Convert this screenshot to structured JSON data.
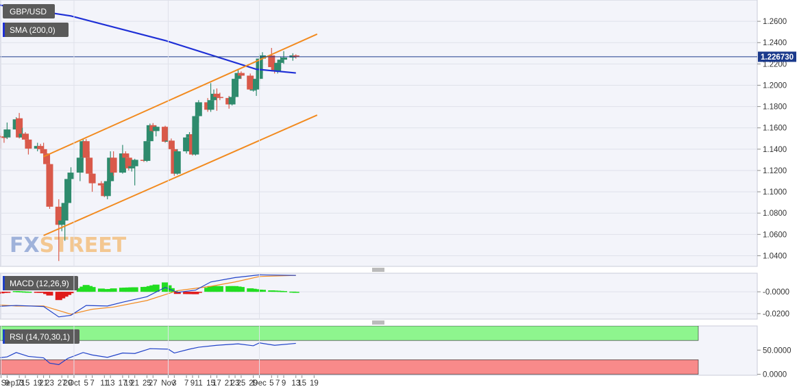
{
  "panels": {
    "price": {
      "pair_label": "GBP/USD",
      "sma_label": "SMA (200,0)",
      "last_price": "1.226730"
    },
    "macd": {
      "label": "MACD (12,26,9)"
    },
    "rsi": {
      "label": "RSI (14,70,30,1)"
    }
  },
  "watermark": {
    "text": "FXSTREET"
  },
  "colors": {
    "bull": "#2e8b6d",
    "bear": "#d9594a",
    "sma": "#1e2fd6",
    "channel": "#f28a1e",
    "price_line": "#1b3a8c",
    "macd_line": "#1e40c8",
    "signal_line": "#f28a1e",
    "hist_pos": "#22dd22",
    "hist_neg": "#e01b1b",
    "rsi_line": "#1e40c8",
    "overbought": "#8ef58e",
    "oversold": "#f88a8a"
  },
  "chart_data": [
    {
      "type": "candlestick",
      "title": "GBP/USD",
      "x_ticks": [
        "Sep 7",
        "9",
        "13",
        "15",
        "19",
        "21",
        "23",
        "27",
        "29",
        "Oct",
        "5",
        "7",
        "11",
        "13",
        "17",
        "19",
        "21",
        "25",
        "27",
        "Nov",
        "3",
        "7",
        "9",
        "11",
        "15",
        "17",
        "21",
        "23",
        "25",
        "29",
        "Dec",
        "5",
        "7",
        "9",
        "13",
        "15",
        "19"
      ],
      "ylim": [
        1.03,
        1.28
      ],
      "y_ticks": [
        "1.2600",
        "1.2400",
        "1.2200",
        "1.2000",
        "1.1800",
        "1.1600",
        "1.1400",
        "1.1200",
        "1.1000",
        "1.0800",
        "1.0600",
        "1.0400"
      ],
      "last_value": 1.22673,
      "candles": [
        {
          "date": "Sep 1",
          "o": 1.1605,
          "h": 1.162,
          "l": 1.15,
          "c": 1.154
        },
        {
          "date": "Sep 2",
          "o": 1.154,
          "h": 1.157,
          "l": 1.148,
          "c": 1.151
        },
        {
          "date": "Sep 5",
          "o": 1.151,
          "h": 1.156,
          "l": 1.144,
          "c": 1.1525
        },
        {
          "date": "Sep 6",
          "o": 1.1525,
          "h": 1.161,
          "l": 1.143,
          "c": 1.152
        },
        {
          "date": "Sep 7",
          "o": 1.152,
          "h": 1.155,
          "l": 1.1405,
          "c": 1.1515
        },
        {
          "date": "Sep 8",
          "o": 1.1515,
          "h": 1.154,
          "l": 1.146,
          "c": 1.151
        },
        {
          "date": "Sep 9",
          "o": 1.151,
          "h": 1.165,
          "l": 1.1495,
          "c": 1.1585
        },
        {
          "date": "Sep 12",
          "o": 1.1585,
          "h": 1.17,
          "l": 1.157,
          "c": 1.168
        },
        {
          "date": "Sep 13",
          "o": 1.169,
          "h": 1.174,
          "l": 1.15,
          "c": 1.151
        },
        {
          "date": "Sep 14",
          "o": 1.151,
          "h": 1.16,
          "l": 1.149,
          "c": 1.1545
        },
        {
          "date": "Sep 15",
          "o": 1.1545,
          "h": 1.156,
          "l": 1.147,
          "c": 1.149
        },
        {
          "date": "Sep 16",
          "o": 1.149,
          "h": 1.15,
          "l": 1.135,
          "c": 1.1405
        },
        {
          "date": "Sep 19",
          "o": 1.1405,
          "h": 1.146,
          "l": 1.138,
          "c": 1.143
        },
        {
          "date": "Sep 20",
          "o": 1.143,
          "h": 1.145,
          "l": 1.138,
          "c": 1.14
        },
        {
          "date": "Sep 21",
          "o": 1.14,
          "h": 1.146,
          "l": 1.136,
          "c": 1.136
        },
        {
          "date": "Sep 22",
          "o": 1.136,
          "h": 1.136,
          "l": 1.121,
          "c": 1.126
        },
        {
          "date": "Sep 23",
          "o": 1.126,
          "h": 1.127,
          "l": 1.084,
          "c": 1.086
        },
        {
          "date": "Sep 26",
          "o": 1.086,
          "h": 1.093,
          "l": 1.035,
          "c": 1.069
        },
        {
          "date": "Sep 27",
          "o": 1.069,
          "h": 1.077,
          "l": 1.063,
          "c": 1.073
        },
        {
          "date": "Sep 28",
          "o": 1.073,
          "h": 1.09,
          "l": 1.054,
          "c": 1.0895
        },
        {
          "date": "Sep 29",
          "o": 1.0895,
          "h": 1.118,
          "l": 1.088,
          "c": 1.112
        },
        {
          "date": "Sep 30",
          "o": 1.112,
          "h": 1.123,
          "l": 1.102,
          "c": 1.118
        },
        {
          "date": "Oct 3",
          "o": 1.118,
          "h": 1.14,
          "l": 1.11,
          "c": 1.132
        },
        {
          "date": "Oct 4",
          "o": 1.132,
          "h": 1.1495,
          "l": 1.13,
          "c": 1.1475
        },
        {
          "date": "Oct 5",
          "o": 1.1475,
          "h": 1.1495,
          "l": 1.129,
          "c": 1.132
        },
        {
          "date": "Oct 6",
          "o": 1.132,
          "h": 1.138,
          "l": 1.109,
          "c": 1.117
        },
        {
          "date": "Oct 7",
          "o": 1.117,
          "h": 1.118,
          "l": 1.1,
          "c": 1.108
        },
        {
          "date": "Oct 10",
          "o": 1.108,
          "h": 1.11,
          "l": 1.104,
          "c": 1.106
        },
        {
          "date": "Oct 11",
          "o": 1.106,
          "h": 1.109,
          "l": 1.095,
          "c": 1.096
        },
        {
          "date": "Oct 12",
          "o": 1.096,
          "h": 1.112,
          "l": 1.093,
          "c": 1.11
        },
        {
          "date": "Oct 13",
          "o": 1.11,
          "h": 1.138,
          "l": 1.105,
          "c": 1.132
        },
        {
          "date": "Oct 14",
          "o": 1.132,
          "h": 1.138,
          "l": 1.115,
          "c": 1.118
        },
        {
          "date": "Oct 17",
          "o": 1.118,
          "h": 1.144,
          "l": 1.117,
          "c": 1.136
        },
        {
          "date": "Oct 18",
          "o": 1.136,
          "h": 1.138,
          "l": 1.125,
          "c": 1.132
        },
        {
          "date": "Oct 19",
          "o": 1.132,
          "h": 1.134,
          "l": 1.12,
          "c": 1.122
        },
        {
          "date": "Oct 20",
          "o": 1.122,
          "h": 1.126,
          "l": 1.119,
          "c": 1.124
        },
        {
          "date": "Oct 21",
          "o": 1.124,
          "h": 1.131,
          "l": 1.106,
          "c": 1.13
        },
        {
          "date": "Oct 24",
          "o": 1.13,
          "h": 1.135,
          "l": 1.128,
          "c": 1.129
        },
        {
          "date": "Oct 25",
          "o": 1.129,
          "h": 1.149,
          "l": 1.128,
          "c": 1.1475
        },
        {
          "date": "Oct 26",
          "o": 1.1475,
          "h": 1.164,
          "l": 1.143,
          "c": 1.1625
        },
        {
          "date": "Oct 27",
          "o": 1.1625,
          "h": 1.1645,
          "l": 1.156,
          "c": 1.157
        },
        {
          "date": "Oct 28",
          "o": 1.157,
          "h": 1.162,
          "l": 1.152,
          "c": 1.161
        },
        {
          "date": "Oct 31",
          "o": 1.161,
          "h": 1.162,
          "l": 1.146,
          "c": 1.147
        },
        {
          "date": "Nov 1",
          "o": 1.147,
          "h": 1.16,
          "l": 1.145,
          "c": 1.148
        },
        {
          "date": "Nov 2",
          "o": 1.148,
          "h": 1.15,
          "l": 1.14,
          "c": 1.14
        },
        {
          "date": "Nov 3",
          "o": 1.14,
          "h": 1.142,
          "l": 1.115,
          "c": 1.117
        },
        {
          "date": "Nov 4",
          "o": 1.117,
          "h": 1.14,
          "l": 1.116,
          "c": 1.138
        },
        {
          "date": "Nov 7",
          "o": 1.138,
          "h": 1.152,
          "l": 1.136,
          "c": 1.151
        },
        {
          "date": "Nov 8",
          "o": 1.151,
          "h": 1.156,
          "l": 1.148,
          "c": 1.154
        },
        {
          "date": "Nov 9",
          "o": 1.154,
          "h": 1.16,
          "l": 1.134,
          "c": 1.135
        },
        {
          "date": "Nov 10",
          "o": 1.135,
          "h": 1.172,
          "l": 1.134,
          "c": 1.171
        },
        {
          "date": "Nov 11",
          "o": 1.171,
          "h": 1.186,
          "l": 1.165,
          "c": 1.184
        },
        {
          "date": "Nov 14",
          "o": 1.184,
          "h": 1.188,
          "l": 1.175,
          "c": 1.177
        },
        {
          "date": "Nov 15",
          "o": 1.177,
          "h": 1.202,
          "l": 1.175,
          "c": 1.186
        },
        {
          "date": "Nov 16",
          "o": 1.186,
          "h": 1.196,
          "l": 1.185,
          "c": 1.192
        },
        {
          "date": "Nov 17",
          "o": 1.192,
          "h": 1.197,
          "l": 1.176,
          "c": 1.189
        },
        {
          "date": "Nov 18",
          "o": 1.189,
          "h": 1.193,
          "l": 1.186,
          "c": 1.188
        },
        {
          "date": "Nov 21",
          "o": 1.188,
          "h": 1.19,
          "l": 1.178,
          "c": 1.182
        },
        {
          "date": "Nov 22",
          "o": 1.182,
          "h": 1.19,
          "l": 1.181,
          "c": 1.189
        },
        {
          "date": "Nov 23",
          "o": 1.189,
          "h": 1.207,
          "l": 1.188,
          "c": 1.206
        },
        {
          "date": "Nov 24",
          "o": 1.206,
          "h": 1.215,
          "l": 1.204,
          "c": 1.2115
        },
        {
          "date": "Nov 25",
          "o": 1.2115,
          "h": 1.213,
          "l": 1.206,
          "c": 1.209
        },
        {
          "date": "Nov 28",
          "o": 1.209,
          "h": 1.211,
          "l": 1.195,
          "c": 1.196
        },
        {
          "date": "Nov 29",
          "o": 1.196,
          "h": 1.205,
          "l": 1.194,
          "c": 1.196
        },
        {
          "date": "Nov 30",
          "o": 1.196,
          "h": 1.208,
          "l": 1.19,
          "c": 1.206
        },
        {
          "date": "Dec 1",
          "o": 1.206,
          "h": 1.23,
          "l": 1.204,
          "c": 1.225
        },
        {
          "date": "Dec 2",
          "o": 1.225,
          "h": 1.231,
          "l": 1.211,
          "c": 1.228
        },
        {
          "date": "Dec 5",
          "o": 1.228,
          "h": 1.235,
          "l": 1.215,
          "c": 1.217
        },
        {
          "date": "Dec 6",
          "o": 1.217,
          "h": 1.223,
          "l": 1.211,
          "c": 1.213
        },
        {
          "date": "Dec 7",
          "o": 1.213,
          "h": 1.222,
          "l": 1.211,
          "c": 1.221
        },
        {
          "date": "Dec 8",
          "o": 1.221,
          "h": 1.227,
          "l": 1.215,
          "c": 1.224
        },
        {
          "date": "Dec 9",
          "o": 1.224,
          "h": 1.232,
          "l": 1.22,
          "c": 1.226
        },
        {
          "date": "Dec 12",
          "o": 1.226,
          "h": 1.23,
          "l": 1.223,
          "c": 1.228
        },
        {
          "date": "Dec 13",
          "o": 1.228,
          "h": 1.229,
          "l": 1.225,
          "c": 1.2267
        }
      ],
      "sma_200": [
        {
          "date": "Aug 29",
          "value": 1.279
        },
        {
          "date": "Sep 30",
          "value": 1.265
        },
        {
          "date": "Oct 31",
          "value": 1.242
        },
        {
          "date": "Nov 30",
          "value": 1.215
        },
        {
          "date": "Dec 13",
          "value": 1.2115
        }
      ],
      "channel_upper": [
        {
          "date": "Sep 21",
          "value": 1.133
        },
        {
          "date": "Dec 20",
          "value": 1.248
        }
      ],
      "channel_lower": [
        {
          "date": "Sep 21",
          "value": 1.059
        },
        {
          "date": "Dec 20",
          "value": 1.172
        }
      ]
    },
    {
      "type": "line",
      "title": "MACD (12,26,9)",
      "ylim": [
        -0.025,
        0.017
      ],
      "y_ticks": [
        "-0.0000",
        "-0.0200"
      ],
      "series": [
        {
          "name": "MACD",
          "values": [
            {
              "date": "Sep 1",
              "value": -0.014
            },
            {
              "date": "Sep 12",
              "value": -0.0125
            },
            {
              "date": "Sep 21",
              "value": -0.0135
            },
            {
              "date": "Sep 26",
              "value": -0.023
            },
            {
              "date": "Sep 30",
              "value": -0.0215
            },
            {
              "date": "Oct 5",
              "value": -0.0125
            },
            {
              "date": "Oct 12",
              "value": -0.013
            },
            {
              "date": "Oct 17",
              "value": -0.0095
            },
            {
              "date": "Oct 25",
              "value": -0.0045
            },
            {
              "date": "Oct 31",
              "value": 0.004
            },
            {
              "date": "Nov 4",
              "value": -0.0005
            },
            {
              "date": "Nov 10",
              "value": 0.0015
            },
            {
              "date": "Nov 15",
              "value": 0.009
            },
            {
              "date": "Nov 23",
              "value": 0.013
            },
            {
              "date": "Dec 1",
              "value": 0.0155
            },
            {
              "date": "Dec 13",
              "value": 0.015
            }
          ]
        },
        {
          "name": "Signal",
          "values": [
            {
              "date": "Sep 1",
              "value": -0.011
            },
            {
              "date": "Sep 12",
              "value": -0.013
            },
            {
              "date": "Sep 21",
              "value": -0.013
            },
            {
              "date": "Sep 30",
              "value": -0.0205
            },
            {
              "date": "Oct 7",
              "value": -0.016
            },
            {
              "date": "Oct 14",
              "value": -0.014
            },
            {
              "date": "Oct 25",
              "value": -0.008
            },
            {
              "date": "Nov 4",
              "value": 0.001
            },
            {
              "date": "Nov 15",
              "value": 0.005
            },
            {
              "date": "Nov 23",
              "value": 0.009
            },
            {
              "date": "Dec 1",
              "value": 0.014
            },
            {
              "date": "Dec 13",
              "value": 0.015
            }
          ]
        }
      ]
    },
    {
      "type": "line",
      "title": "RSI (14,70,30,1)",
      "ylim": [
        -2,
        100
      ],
      "y_ticks": [
        "50.0000",
        "0.0000"
      ],
      "series": [
        {
          "name": "RSI",
          "values": [
            {
              "date": "Sep 1",
              "value": 30
            },
            {
              "date": "Sep 9",
              "value": 36
            },
            {
              "date": "Sep 12",
              "value": 45
            },
            {
              "date": "Sep 16",
              "value": 37
            },
            {
              "date": "Sep 21",
              "value": 34
            },
            {
              "date": "Sep 23",
              "value": 23
            },
            {
              "date": "Sep 26",
              "value": 20
            },
            {
              "date": "Sep 29",
              "value": 33
            },
            {
              "date": "Oct 4",
              "value": 45
            },
            {
              "date": "Oct 7",
              "value": 40
            },
            {
              "date": "Oct 12",
              "value": 35
            },
            {
              "date": "Oct 17",
              "value": 44
            },
            {
              "date": "Oct 21",
              "value": 43
            },
            {
              "date": "Oct 26",
              "value": 53
            },
            {
              "date": "Nov 1",
              "value": 52
            },
            {
              "date": "Nov 3",
              "value": 44
            },
            {
              "date": "Nov 8",
              "value": 52
            },
            {
              "date": "Nov 11",
              "value": 56
            },
            {
              "date": "Nov 17",
              "value": 60
            },
            {
              "date": "Nov 24",
              "value": 63
            },
            {
              "date": "Nov 29",
              "value": 59
            },
            {
              "date": "Dec 1",
              "value": 65
            },
            {
              "date": "Dec 6",
              "value": 60
            },
            {
              "date": "Dec 13",
              "value": 64
            }
          ]
        }
      ]
    }
  ]
}
